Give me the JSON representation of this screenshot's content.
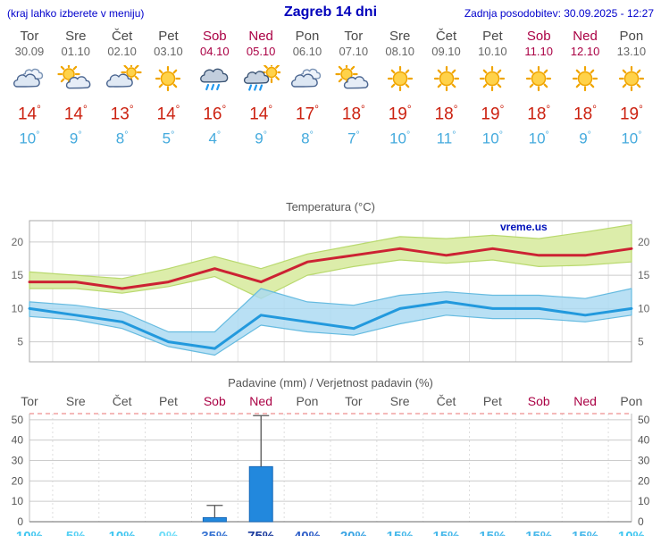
{
  "header": {
    "left_note": "(kraj lahko izberete v meniju)",
    "title": "Zagreb 14 dni",
    "last_update": "Zadnja posodobitev: 30.09.2025 - 12:27"
  },
  "colors": {
    "accent_blue": "#0000cc",
    "weekend_red": "#aa0044",
    "weekday_gray": "#555555",
    "high_temp_red": "#cc2211",
    "low_temp_blue": "#44aadd",
    "bar_blue": "#2288dd"
  },
  "forecast": {
    "days": [
      {
        "name": "Tor",
        "date": "30.09",
        "icon": "cloudy-icon",
        "high": 14,
        "low": 10,
        "weekend": false
      },
      {
        "name": "Sre",
        "date": "01.10",
        "icon": "partly-cloudy-icon",
        "high": 14,
        "low": 9,
        "weekend": false
      },
      {
        "name": "Čet",
        "date": "02.10",
        "icon": "mostly-cloudy-icon",
        "high": 13,
        "low": 8,
        "weekend": false
      },
      {
        "name": "Pet",
        "date": "03.10",
        "icon": "sunny-icon",
        "high": 14,
        "low": 5,
        "weekend": false
      },
      {
        "name": "Sob",
        "date": "04.10",
        "icon": "rain-icon",
        "high": 16,
        "low": 4,
        "weekend": true
      },
      {
        "name": "Ned",
        "date": "05.10",
        "icon": "sun-shower-icon",
        "high": 14,
        "low": 9,
        "weekend": true
      },
      {
        "name": "Pon",
        "date": "06.10",
        "icon": "cloudy-icon",
        "high": 17,
        "low": 8,
        "weekend": false
      },
      {
        "name": "Tor",
        "date": "07.10",
        "icon": "partly-cloudy-icon",
        "high": 18,
        "low": 7,
        "weekend": false
      },
      {
        "name": "Sre",
        "date": "08.10",
        "icon": "sunny-icon",
        "high": 19,
        "low": 10,
        "weekend": false
      },
      {
        "name": "Čet",
        "date": "09.10",
        "icon": "sunny-icon",
        "high": 18,
        "low": 11,
        "weekend": false
      },
      {
        "name": "Pet",
        "date": "10.10",
        "icon": "sunny-icon",
        "high": 19,
        "low": 10,
        "weekend": false
      },
      {
        "name": "Sob",
        "date": "11.10",
        "icon": "sunny-icon",
        "high": 18,
        "low": 10,
        "weekend": true
      },
      {
        "name": "Ned",
        "date": "12.10",
        "icon": "sunny-icon",
        "high": 18,
        "low": 9,
        "weekend": true
      },
      {
        "name": "Pon",
        "date": "13.10",
        "icon": "sunny-icon",
        "high": 19,
        "low": 10,
        "weekend": false
      }
    ]
  },
  "chart_data": [
    {
      "type": "line",
      "title": "Temperatura (°C)",
      "watermark": "vreme.us",
      "x": [
        "Tor 30.09",
        "Sre 01.10",
        "Čet 02.10",
        "Pet 03.10",
        "Sob 04.10",
        "Ned 05.10",
        "Pon 06.10",
        "Tor 07.10",
        "Sre 08.10",
        "Čet 09.10",
        "Pet 10.10",
        "Sob 11.10",
        "Ned 12.10",
        "Pon 13.10"
      ],
      "series": [
        {
          "name": "temperatura max",
          "color": "#cc2233",
          "values": [
            14,
            14,
            13,
            14,
            16,
            14,
            17,
            18,
            19,
            18,
            19,
            18,
            18,
            19
          ]
        },
        {
          "name": "temperatura min",
          "color": "#2299dd",
          "values": [
            10,
            9,
            8,
            5,
            4,
            9,
            8,
            7,
            10,
            11,
            10,
            10,
            9,
            10
          ]
        }
      ],
      "bands": [
        {
          "name": "max-range",
          "fill": "#dcedaa",
          "edge": "#b9d96e",
          "upper": [
            15.5,
            15,
            14.5,
            16,
            17.8,
            16,
            18.2,
            19.5,
            20.8,
            20.5,
            21,
            20.5,
            21.5,
            22.6
          ],
          "lower": [
            13,
            13,
            12.3,
            13.3,
            14.8,
            11.5,
            15,
            16.3,
            17.3,
            16.8,
            17.3,
            16.3,
            16.5,
            17
          ]
        },
        {
          "name": "min-range",
          "fill": "#a9d9f2",
          "edge": "#66bbe0",
          "upper": [
            11,
            10.5,
            9.5,
            6.5,
            6.5,
            13,
            11,
            10.5,
            12,
            12.5,
            12,
            12,
            11.5,
            13
          ],
          "lower": [
            8.8,
            8.3,
            7,
            4.3,
            3,
            7.5,
            6.5,
            6,
            7.7,
            9,
            8.5,
            8.5,
            8,
            9
          ]
        }
      ],
      "ylim": [
        2,
        23.2
      ],
      "yticks": [
        5,
        10,
        15,
        20
      ],
      "grid": true,
      "legend_position": "none"
    },
    {
      "type": "bar",
      "title": "Padavine (mm) / Verjetnost padavin (%)",
      "categories": [
        "Tor",
        "Sre",
        "Čet",
        "Pet",
        "Sob",
        "Ned",
        "Pon",
        "Tor",
        "Sre",
        "Čet",
        "Pet",
        "Sob",
        "Ned",
        "Pon"
      ],
      "weekend_indices": [
        4,
        5,
        11,
        12
      ],
      "values_mm": [
        0,
        0,
        0,
        0,
        2,
        27,
        0,
        0,
        0,
        0,
        0,
        0,
        0,
        0
      ],
      "whisker_max_mm": [
        0,
        0,
        0,
        0,
        8,
        52,
        0,
        0,
        0,
        0,
        0,
        0,
        0,
        0
      ],
      "probability_labels": [
        {
          "text": "10%",
          "color": "#3fc6f0"
        },
        {
          "text": "5%",
          "color": "#54d0f4"
        },
        {
          "text": "10%",
          "color": "#3fc6f0"
        },
        {
          "text": "0%",
          "color": "#6cdcf8"
        },
        {
          "text": "35%",
          "color": "#3472d2"
        },
        {
          "text": "75%",
          "color": "#16379b"
        },
        {
          "text": "40%",
          "color": "#2e5ec8"
        },
        {
          "text": "20%",
          "color": "#3aa4e4"
        },
        {
          "text": "15%",
          "color": "#46b8ea"
        },
        {
          "text": "15%",
          "color": "#46b8ea"
        },
        {
          "text": "15%",
          "color": "#46b8ea"
        },
        {
          "text": "15%",
          "color": "#46b8ea"
        },
        {
          "text": "15%",
          "color": "#46b8ea"
        },
        {
          "text": "10%",
          "color": "#3fc6f0"
        }
      ],
      "bar_color": "#2288dd",
      "ylim": [
        0,
        53
      ],
      "yticks": [
        0,
        10,
        20,
        30,
        40,
        50
      ],
      "grid": true
    }
  ]
}
